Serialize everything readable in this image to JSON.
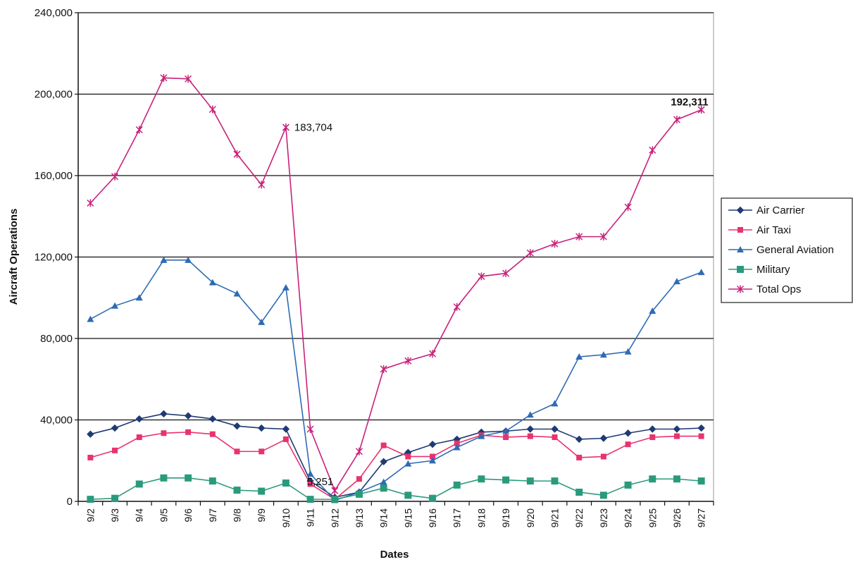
{
  "chart_data": {
    "type": "line",
    "title": "",
    "xlabel": "Dates",
    "ylabel": "Aircraft Operations",
    "ylim": [
      0,
      240000
    ],
    "yticks": [
      0,
      40000,
      80000,
      120000,
      160000,
      200000,
      240000
    ],
    "ytick_labels": [
      "0",
      "40,000",
      "80,000",
      "120,000",
      "160,000",
      "200,000",
      "240,000"
    ],
    "grid": "horizontal",
    "legend_position": "right",
    "categories": [
      "9/2",
      "9/3",
      "9/4",
      "9/5",
      "9/6",
      "9/7",
      "9/8",
      "9/9",
      "9/10",
      "9/11",
      "9/12",
      "9/13",
      "9/14",
      "9/15",
      "9/16",
      "9/17",
      "9/18",
      "9/19",
      "9/20",
      "9/21",
      "9/22",
      "9/23",
      "9/24",
      "9/25",
      "9/26",
      "9/27"
    ],
    "series": [
      {
        "name": "Air Carrier",
        "color": "#1f3b73",
        "marker": "diamond",
        "values": [
          33000,
          36000,
          40500,
          43000,
          42000,
          40500,
          37000,
          36000,
          35500,
          10000,
          2000,
          4500,
          19500,
          24000,
          28000,
          30500,
          34000,
          34500,
          35500,
          35500,
          30500,
          31000,
          33500,
          35500,
          35500,
          36000
        ]
      },
      {
        "name": "Air Taxi",
        "color": "#e8336e",
        "marker": "square",
        "values": [
          21500,
          25000,
          31500,
          33500,
          34000,
          33000,
          24500,
          24500,
          30500,
          8500,
          1000,
          11000,
          27500,
          22000,
          22000,
          28500,
          32500,
          31500,
          32000,
          31500,
          21500,
          22000,
          28000,
          31500,
          32000,
          32000
        ]
      },
      {
        "name": "General Aviation",
        "color": "#2f6bb3",
        "marker": "triangle",
        "values": [
          89500,
          96000,
          100000,
          118500,
          118500,
          107500,
          102000,
          88000,
          105000,
          13500,
          500,
          4500,
          9500,
          18500,
          20000,
          26500,
          32000,
          34500,
          42500,
          48000,
          71000,
          72000,
          73500,
          93500,
          108000,
          112500
        ]
      },
      {
        "name": "Military",
        "color": "#2a9a7c",
        "marker": "square-large",
        "values": [
          1000,
          1500,
          8500,
          11500,
          11500,
          10000,
          5500,
          5000,
          9000,
          1000,
          1000,
          3500,
          6500,
          3000,
          1500,
          8000,
          11000,
          10500,
          10000,
          10000,
          4500,
          3000,
          8000,
          11000,
          11000,
          10000
        ]
      },
      {
        "name": "Total Ops",
        "color": "#c8217a",
        "marker": "asterisk",
        "values": [
          146500,
          159500,
          182500,
          208000,
          207500,
          192500,
          170500,
          155500,
          183704,
          35500,
          5251,
          24500,
          65000,
          69000,
          72500,
          95500,
          110500,
          112000,
          122000,
          126500,
          130000,
          130000,
          144500,
          172500,
          187500,
          192311
        ]
      }
    ],
    "annotations": [
      {
        "text": "183,704",
        "series": "Total Ops",
        "category": "9/10",
        "value": 183704
      },
      {
        "text": "5,251",
        "series": "Total Ops",
        "category": "9/12",
        "value": 5251
      },
      {
        "text": "192,311",
        "series": "Total Ops",
        "category": "9/27",
        "value": 192311
      }
    ]
  }
}
